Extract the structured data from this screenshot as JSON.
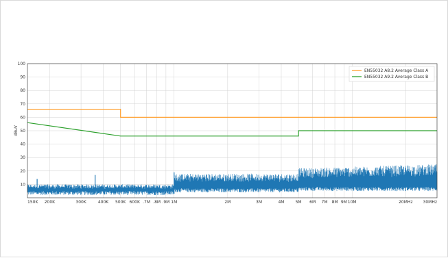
{
  "chart_data": {
    "type": "line",
    "title": "",
    "xlabel": "",
    "ylabel": "dBuV",
    "x_scale": "log",
    "xlim": [
      150000,
      30000000
    ],
    "ylim": [
      0,
      100
    ],
    "y_ticks": [
      10,
      20,
      30,
      40,
      50,
      60,
      70,
      80,
      90,
      100
    ],
    "x_ticks": [
      {
        "value": 150000,
        "label": "150K"
      },
      {
        "value": 200000,
        "label": "200K"
      },
      {
        "value": 300000,
        "label": "300K"
      },
      {
        "value": 400000,
        "label": "400K"
      },
      {
        "value": 500000,
        "label": "500K"
      },
      {
        "value": 600000,
        "label": "600K"
      },
      {
        "value": 700000,
        "label": ".7M"
      },
      {
        "value": 800000,
        "label": ".8M"
      },
      {
        "value": 900000,
        "label": ".9M"
      },
      {
        "value": 1000000,
        "label": "1M"
      },
      {
        "value": 2000000,
        "label": "2M"
      },
      {
        "value": 3000000,
        "label": "3M"
      },
      {
        "value": 4000000,
        "label": "4M"
      },
      {
        "value": 5000000,
        "label": "5M"
      },
      {
        "value": 6000000,
        "label": "6M"
      },
      {
        "value": 7000000,
        "label": "7M"
      },
      {
        "value": 8000000,
        "label": "8M"
      },
      {
        "value": 9000000,
        "label": "9M"
      },
      {
        "value": 10000000,
        "label": "10M"
      },
      {
        "value": 20000000,
        "label": "20MHz"
      },
      {
        "value": 30000000,
        "label": "30MHz"
      }
    ],
    "grid": true,
    "legend_position": "top-right",
    "series": [
      {
        "name": "EN55032 A8.2 Average Class A",
        "color": "#ff9f2e",
        "x": [
          150000,
          500000,
          500000,
          30000000
        ],
        "y": [
          66,
          66,
          60,
          60
        ]
      },
      {
        "name": "EN55032 A9.2 Average Class B",
        "color": "#2ca02c",
        "x": [
          150000,
          500000,
          5000000,
          5000000,
          30000000
        ],
        "y": [
          56,
          46,
          46,
          50,
          50
        ]
      }
    ],
    "measurement": {
      "color": "#1f77b4",
      "bands": [
        {
          "from": 150000,
          "to": 1000000,
          "floor": 2,
          "peak": 10
        },
        {
          "from": 1000000,
          "to": 5000000,
          "floor": 4,
          "peak": 18
        },
        {
          "from": 5000000,
          "to": 30000000,
          "floor": 5,
          "peak": 22
        }
      ],
      "x_spikes": [
        170000,
        360000,
        1000000
      ],
      "y_spikes": [
        14,
        17,
        19
      ]
    }
  }
}
